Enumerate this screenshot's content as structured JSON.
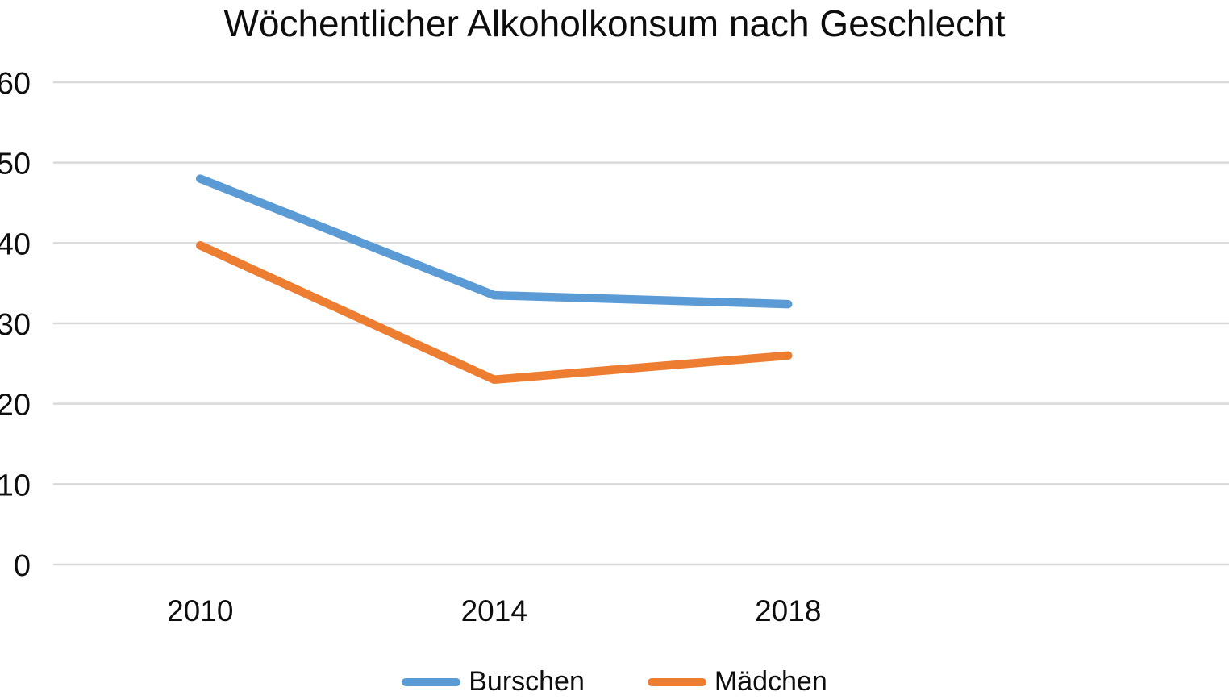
{
  "chart_data": {
    "type": "line",
    "title": "Wöchentlicher Alkoholkonsum nach Geschlecht",
    "categories": [
      "2010",
      "2014",
      "2018"
    ],
    "series": [
      {
        "name": "Burschen",
        "color": "#5B9BD5",
        "values": [
          48,
          33.5,
          32.4
        ]
      },
      {
        "name": "Mädchen",
        "color": "#ED7D31",
        "values": [
          39.7,
          23,
          26
        ]
      }
    ],
    "xlabel": "",
    "ylabel": "",
    "ylim": [
      0,
      60
    ],
    "ytick_step": 10,
    "ytick_labels": [
      "0",
      "10",
      "20",
      "30",
      "40",
      "50",
      "60"
    ],
    "grid": true,
    "gridline_color": "#D9D9D9",
    "text_color": "#0d0d0d",
    "legend_position": "bottom"
  }
}
